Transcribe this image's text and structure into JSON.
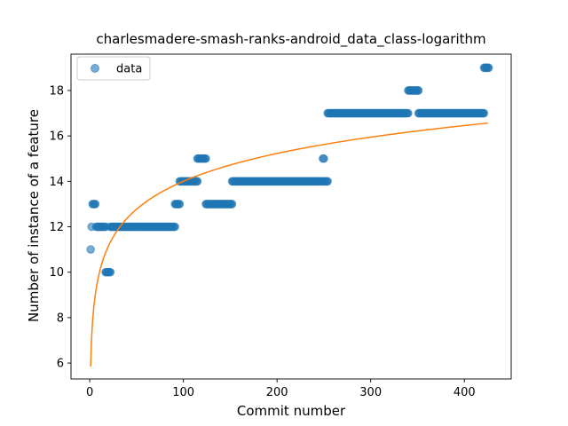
{
  "chart_data": {
    "type": "scatter",
    "title": "charlesmadere-smash-ranks-android_data_class-logarithm",
    "xlabel": "Commit number",
    "ylabel": "Number of instance of a feature",
    "xlim": [
      -20,
      450
    ],
    "ylim": [
      5.3,
      19.6
    ],
    "xticks": [
      0,
      100,
      200,
      300,
      400
    ],
    "yticks": [
      6,
      8,
      10,
      12,
      14,
      16,
      18
    ],
    "grid": false,
    "legend": {
      "placement": "top-left",
      "entries": [
        "data"
      ]
    },
    "colors": {
      "data": "#1f77b4",
      "fit": "#ff7f0e"
    },
    "series": [
      {
        "name": "data",
        "kind": "scatter",
        "segments": [
          {
            "x_start": 1,
            "x_end": 1,
            "y": 11
          },
          {
            "x_start": 2,
            "x_end": 2,
            "y": 12
          },
          {
            "x_start": 3,
            "x_end": 6,
            "y": 13
          },
          {
            "x_start": 7,
            "x_end": 17,
            "y": 12
          },
          {
            "x_start": 17,
            "x_end": 22,
            "y": 10
          },
          {
            "x_start": 22,
            "x_end": 91,
            "y": 12
          },
          {
            "x_start": 91,
            "x_end": 96,
            "y": 13
          },
          {
            "x_start": 96,
            "x_end": 115,
            "y": 14
          },
          {
            "x_start": 115,
            "x_end": 124,
            "y": 15
          },
          {
            "x_start": 124,
            "x_end": 152,
            "y": 13
          },
          {
            "x_start": 152,
            "x_end": 249,
            "y": 14
          },
          {
            "x_start": 249,
            "x_end": 250,
            "y": 15
          },
          {
            "x_start": 251,
            "x_end": 254,
            "y": 14
          },
          {
            "x_start": 254,
            "x_end": 340,
            "y": 17
          },
          {
            "x_start": 340,
            "x_end": 351,
            "y": 18
          },
          {
            "x_start": 351,
            "x_end": 421,
            "y": 17
          },
          {
            "x_start": 421,
            "x_end": 426,
            "y": 19
          }
        ]
      },
      {
        "kind": "line",
        "model": "a + b*ln(x)",
        "a": 5.85,
        "b": 1.77,
        "x_range": [
          1,
          425
        ]
      }
    ]
  }
}
